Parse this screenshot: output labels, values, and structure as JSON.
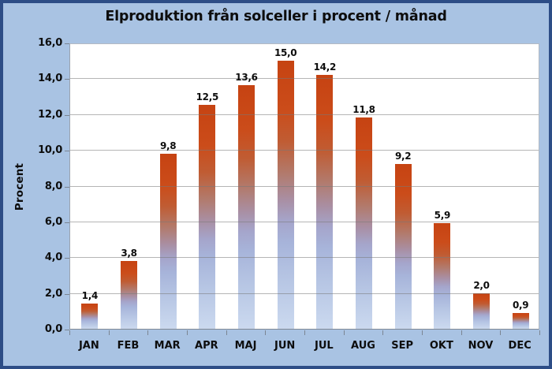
{
  "title": "Elproduktion från solceller i procent / månad",
  "chart_data": {
    "type": "bar",
    "title": "Elproduktion från solceller i procent / månad",
    "categories": [
      "JAN",
      "FEB",
      "MAR",
      "APR",
      "MAJ",
      "JUN",
      "JUL",
      "AUG",
      "SEP",
      "OKT",
      "NOV",
      "DEC"
    ],
    "values": [
      1.4,
      3.8,
      9.8,
      12.5,
      13.6,
      15.0,
      14.2,
      11.8,
      9.2,
      5.9,
      2.0,
      0.9
    ],
    "value_labels": [
      "1,4",
      "3,8",
      "9,8",
      "12,5",
      "13,6",
      "15,0",
      "14,2",
      "11,8",
      "9,2",
      "5,9",
      "2,0",
      "0,9"
    ],
    "xlabel": "",
    "ylabel": "Procent",
    "ylim": [
      0,
      16
    ],
    "ytick_step": 2,
    "ytick_labels": [
      "0,0",
      "2,0",
      "4,0",
      "6,0",
      "8,0",
      "10,0",
      "12,0",
      "14,0",
      "16,0"
    ],
    "grid": true,
    "legend": "none",
    "colors": {
      "bar_top": "#c64312",
      "bar_bottom": "#cbd9ef",
      "background": "#a9c3e3",
      "frame_border": "#2d4d86",
      "plot_background": "#ffffff",
      "gridline": "#787878",
      "text": "#0d0d0d"
    }
  }
}
